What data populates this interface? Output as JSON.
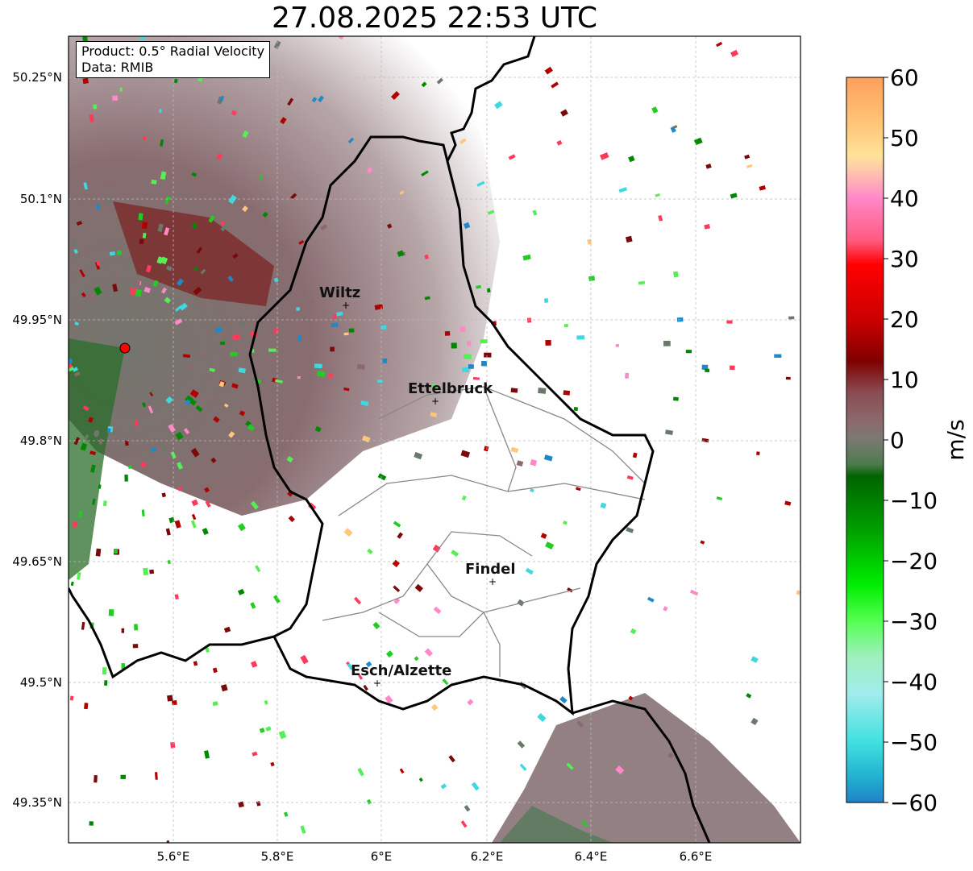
{
  "title": "27.08.2025 22:53 UTC",
  "info": {
    "product": "Product: 0.5° Radial Velocity",
    "source": "Data: RMIB"
  },
  "lat_ticks": [
    "50.25°N",
    "50.1°N",
    "49.95°N",
    "49.8°N",
    "49.65°N",
    "49.5°N",
    "49.35°N"
  ],
  "lon_ticks": [
    "5.6°E",
    "5.8°E",
    "6°E",
    "6.2°E",
    "6.4°E",
    "6.6°E"
  ],
  "cities": [
    {
      "name": "Wiltz"
    },
    {
      "name": "Ettelbruck"
    },
    {
      "name": "Findel"
    },
    {
      "name": "Esch/Alzette"
    }
  ],
  "colorbar": {
    "unit": "m/s",
    "ticks": [
      "60",
      "50",
      "40",
      "30",
      "20",
      "10",
      "0",
      "−10",
      "−20",
      "−30",
      "−40",
      "−50",
      "−60"
    ],
    "range": [
      -60,
      60
    ],
    "stops": [
      {
        "v": 60,
        "c": "#ff9f5a"
      },
      {
        "v": 52,
        "c": "#ffc77a"
      },
      {
        "v": 47,
        "c": "#ffe39a"
      },
      {
        "v": 44,
        "c": "#ffc0b0"
      },
      {
        "v": 40,
        "c": "#ff88c8"
      },
      {
        "v": 33,
        "c": "#ff5a80"
      },
      {
        "v": 29,
        "c": "#ff0000"
      },
      {
        "v": 20,
        "c": "#cc0000"
      },
      {
        "v": 13,
        "c": "#800000"
      },
      {
        "v": 8,
        "c": "#8a4a52"
      },
      {
        "v": 3,
        "c": "#8c6a6c"
      },
      {
        "v": 0,
        "c": "#7a7a72"
      },
      {
        "v": -4,
        "c": "#4e7a4e"
      },
      {
        "v": -6,
        "c": "#006400"
      },
      {
        "v": -15,
        "c": "#00a000"
      },
      {
        "v": -24,
        "c": "#00ee00"
      },
      {
        "v": -30,
        "c": "#55ff55"
      },
      {
        "v": -36,
        "c": "#a0f0c0"
      },
      {
        "v": -42,
        "c": "#a0ecec"
      },
      {
        "v": -50,
        "c": "#40e0e0"
      },
      {
        "v": -56,
        "c": "#20b0d0"
      },
      {
        "v": -60,
        "c": "#2080c8"
      }
    ]
  },
  "colors": {
    "border": "#000000",
    "canton_border": "#888888",
    "grid": "#bbbbbb",
    "radar_site": "#ff0000"
  }
}
